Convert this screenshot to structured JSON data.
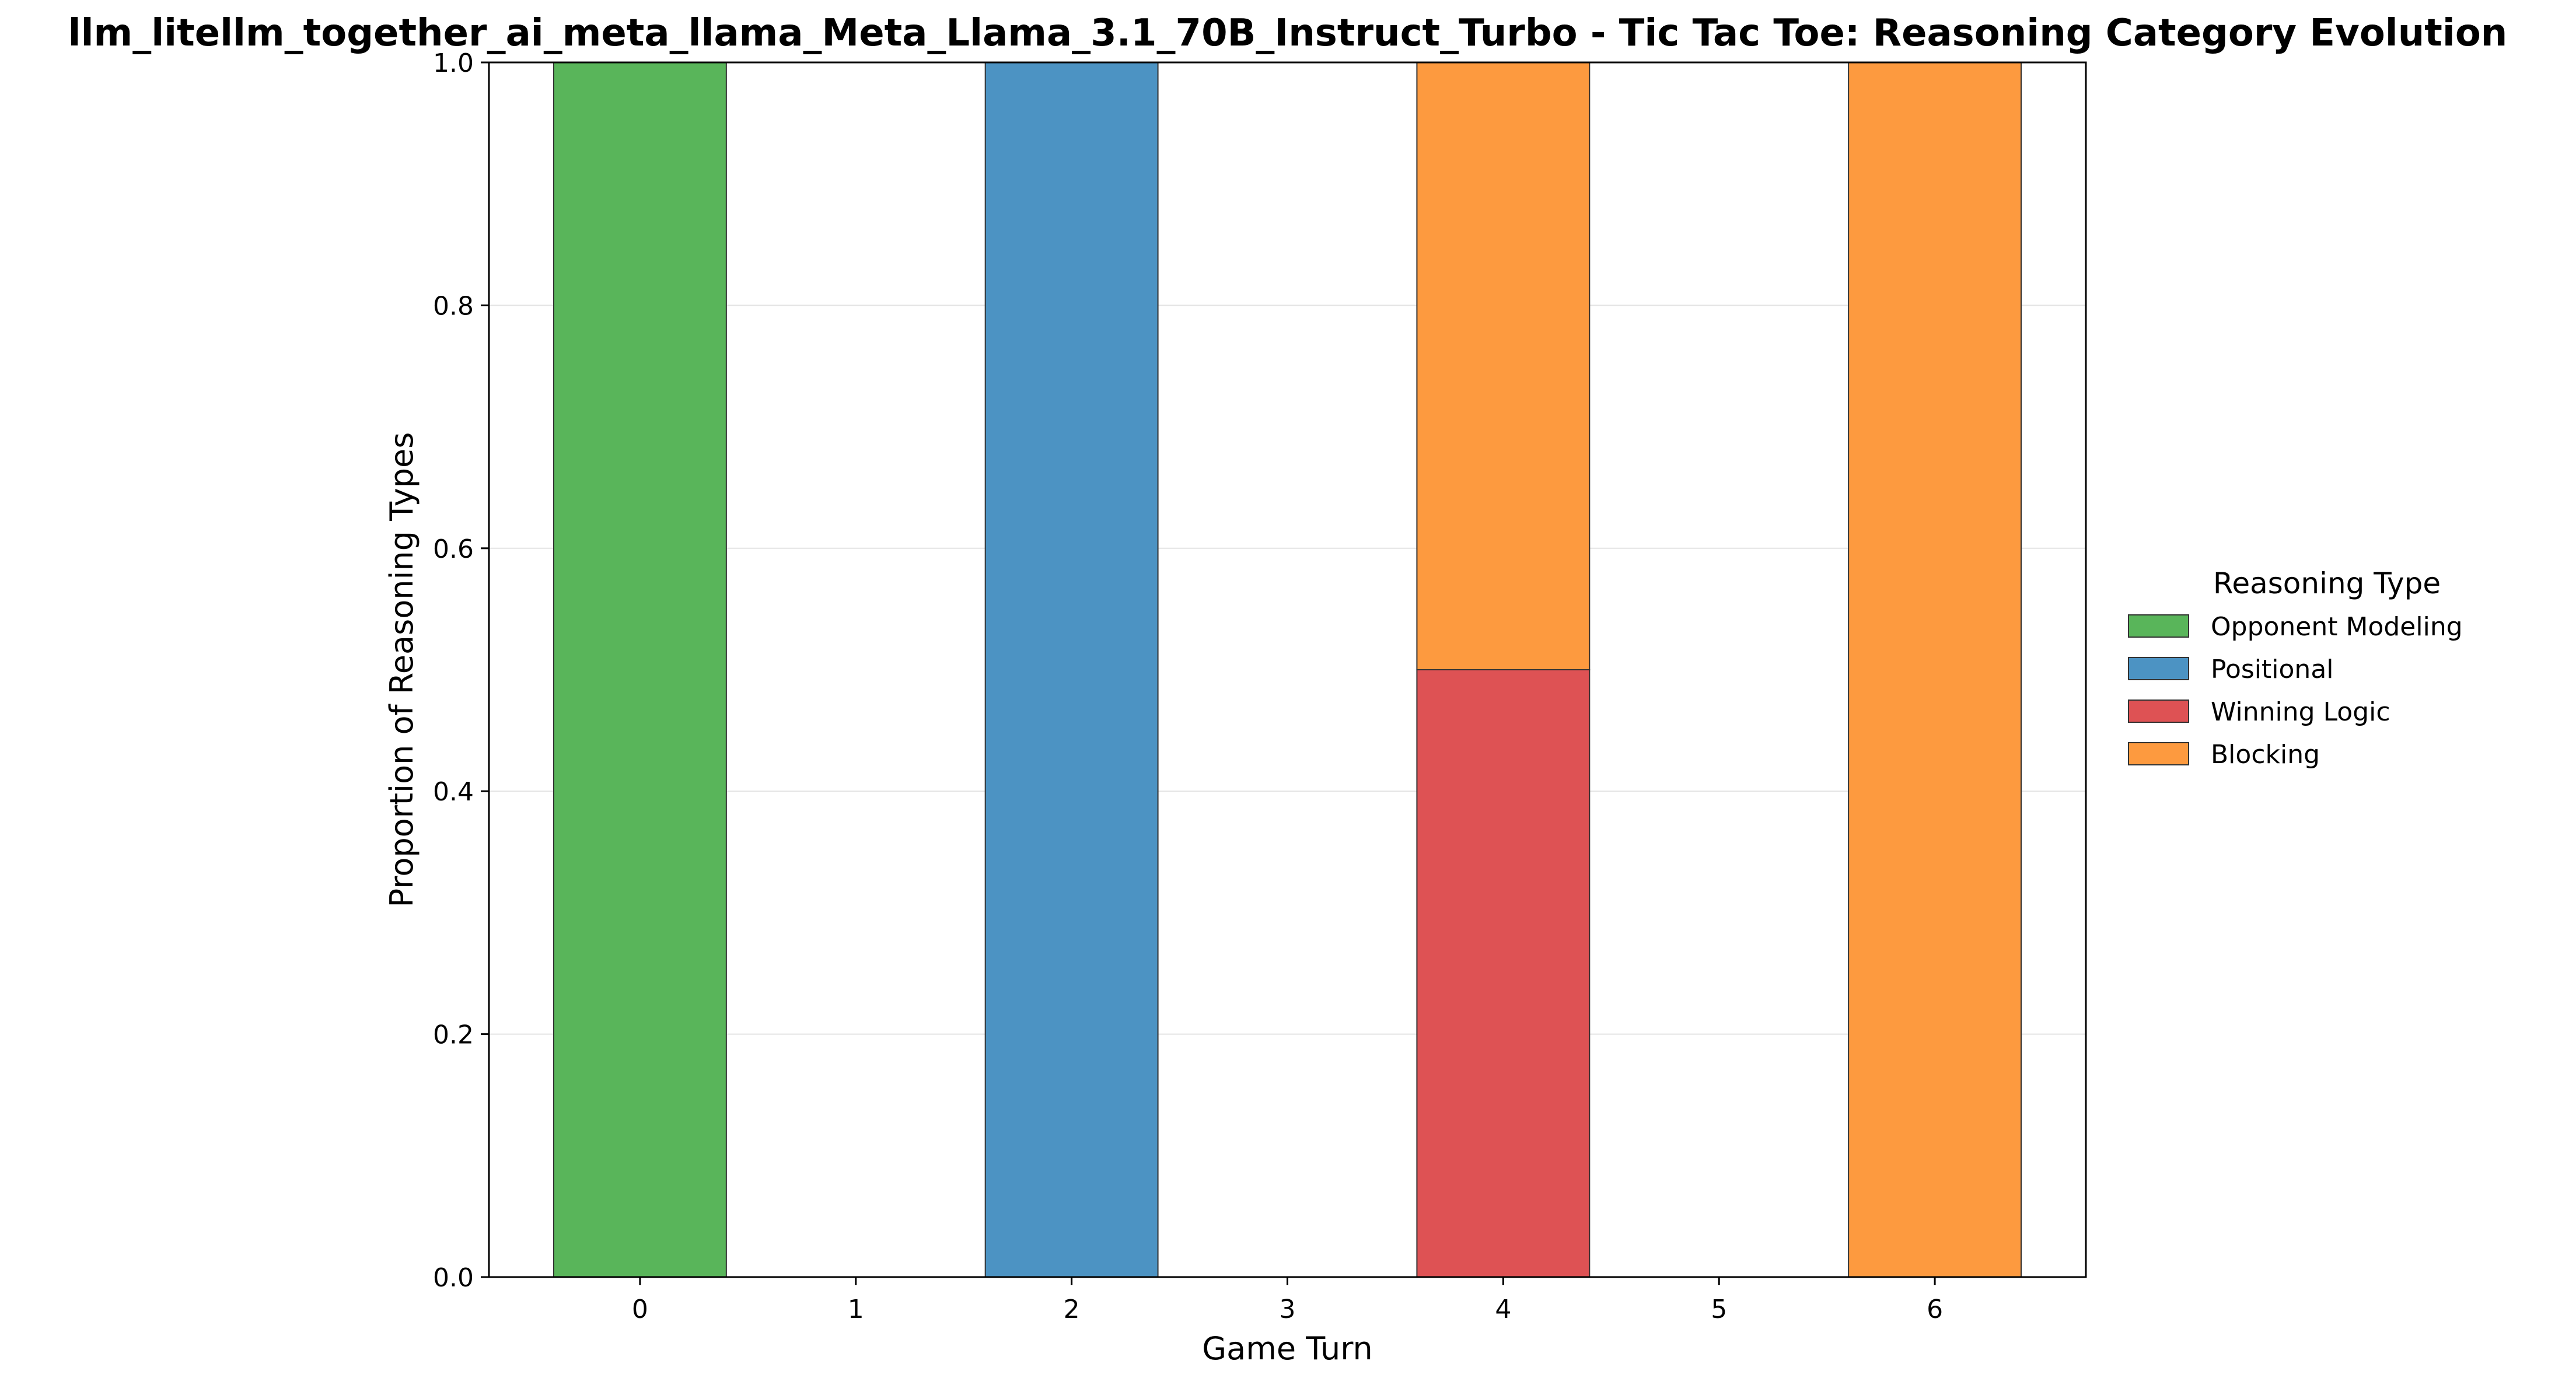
{
  "chart_data": {
    "type": "bar",
    "stacked": true,
    "title": "llm_litellm_together_ai_meta_llama_Meta_Llama_3.1_70B_Instruct_Turbo - Tic Tac Toe: Reasoning Category Evolution",
    "xlabel": "Game Turn",
    "ylabel": "Proportion of Reasoning Types",
    "categories": [
      "0",
      "1",
      "2",
      "3",
      "4",
      "5",
      "6"
    ],
    "x": [
      0,
      1,
      2,
      3,
      4,
      5,
      6
    ],
    "ylim": [
      0,
      1
    ],
    "yticks": [
      "0.0",
      "0.2",
      "0.4",
      "0.6",
      "0.8",
      "1.0"
    ],
    "grid": "horizontal",
    "legend_title": "Reasoning Type",
    "legend_position": "right",
    "series": [
      {
        "name": "Opponent Modeling",
        "color": "#59b55a",
        "values": [
          1.0,
          0,
          0,
          0,
          0,
          0,
          0
        ]
      },
      {
        "name": "Positional",
        "color": "#4c93c3",
        "values": [
          0,
          0,
          1.0,
          0,
          0,
          0,
          0
        ]
      },
      {
        "name": "Winning Logic",
        "color": "#de5254",
        "values": [
          0,
          0,
          0,
          0,
          0.5,
          0,
          0
        ]
      },
      {
        "name": "Blocking",
        "color": "#fd9a3f",
        "values": [
          0,
          0,
          0,
          0,
          0.5,
          0,
          1.0
        ]
      }
    ]
  }
}
